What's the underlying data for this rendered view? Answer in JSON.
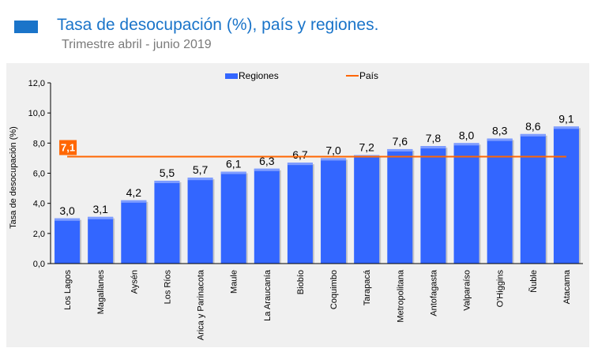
{
  "header": {
    "title": "Tasa de desocupación (%), país y regiones.",
    "subtitle": "Trimestre abril - junio 2019",
    "accent_color": "#1a74c9"
  },
  "chart_data": {
    "type": "bar",
    "ylabel": "Tasa de desocupación (%)",
    "ylim": [
      0,
      12
    ],
    "yticks": [
      "0,0",
      "2,0",
      "4,0",
      "6,0",
      "8,0",
      "10,0",
      "12,0"
    ],
    "grid": false,
    "legend_position": "top",
    "categories": [
      "Los Lagos",
      "Magallanes",
      "Aysén",
      "Los Ríos",
      "Arica y Parinacota",
      "Maule",
      "La Araucanía",
      "Biobío",
      "Coquimbo",
      "Tarapacá",
      "Metropolitana",
      "Antofagasta",
      "Valparaíso",
      "O'Higgins",
      "Ñuble",
      "Atacama"
    ],
    "series": [
      {
        "name": "Regiones",
        "color": "#3366ff",
        "values": [
          3.0,
          3.1,
          4.2,
          5.5,
          5.7,
          6.1,
          6.3,
          6.7,
          7.0,
          7.2,
          7.6,
          7.8,
          8.0,
          8.3,
          8.6,
          9.1
        ],
        "labels": [
          "3,0",
          "3,1",
          "4,2",
          "5,5",
          "5,7",
          "6,1",
          "6,3",
          "6,7",
          "7,0",
          "7,2",
          "7,6",
          "7,8",
          "8,0",
          "8,3",
          "8,6",
          "9,1"
        ]
      }
    ],
    "reference_line": {
      "name": "País",
      "value": 7.1,
      "label": "7,1",
      "color": "#ff6600"
    }
  }
}
